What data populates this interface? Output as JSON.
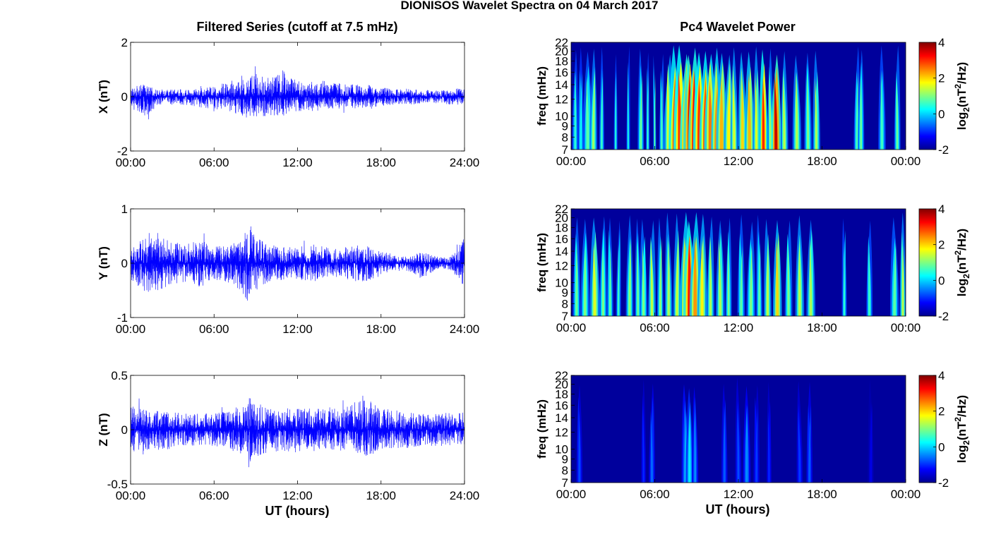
{
  "title": "DIONISOS Wavelet Spectra on 04 March 2017",
  "left_column_title": "Filtered Series (cutoff at 7.5 mHz)",
  "right_column_title": "Pc4 Wavelet Power",
  "x_axis_label": "UT (hours)",
  "colors": {
    "trace": "#0000ff",
    "spectrum_background": "#00009c",
    "axes": "#000000"
  },
  "chart_data": [
    {
      "type": "line",
      "component": "X",
      "ylabel": "X (nT)",
      "ylim": [
        -2,
        2
      ],
      "yticks": [
        "-2",
        "0",
        "2"
      ],
      "yticks_values": [
        -2,
        0,
        2
      ],
      "xlim": [
        0,
        24
      ],
      "xticks": [
        "00:00",
        "06:00",
        "12:00",
        "18:00",
        "24:00"
      ],
      "xticks_values": [
        0,
        6,
        12,
        18,
        24
      ],
      "envelope": {
        "x": [
          0,
          1,
          2,
          3,
          4,
          5,
          6,
          7,
          8,
          8.5,
          9,
          10,
          10.5,
          11,
          12,
          13,
          14,
          15,
          16,
          17,
          18,
          19,
          20,
          21,
          22,
          23,
          24
        ],
        "upper": [
          0.35,
          0.45,
          0.25,
          0.3,
          0.25,
          0.3,
          0.4,
          0.55,
          0.7,
          0.9,
          0.85,
          0.7,
          0.9,
          1.0,
          0.6,
          0.55,
          0.6,
          0.5,
          0.5,
          0.45,
          0.4,
          0.3,
          0.3,
          0.25,
          0.25,
          0.3,
          0.3
        ],
        "lower": [
          -0.4,
          -0.8,
          -0.3,
          -0.3,
          -0.3,
          -0.4,
          -0.45,
          -0.55,
          -0.7,
          -0.9,
          -0.8,
          -0.75,
          -0.7,
          -0.75,
          -0.55,
          -0.55,
          -0.5,
          -0.45,
          -0.45,
          -0.4,
          -0.35,
          -0.3,
          -0.3,
          -0.25,
          -0.25,
          -0.3,
          -0.3
        ]
      }
    },
    {
      "type": "line",
      "component": "Y",
      "ylabel": "Y (nT)",
      "ylim": [
        -1,
        1
      ],
      "yticks": [
        "-1",
        "0",
        "1"
      ],
      "yticks_values": [
        -1,
        0,
        1
      ],
      "xlim": [
        0,
        24
      ],
      "xticks": [
        "00:00",
        "06:00",
        "12:00",
        "18:00",
        "24:00"
      ],
      "xticks_values": [
        0,
        6,
        12,
        18,
        24
      ],
      "envelope": {
        "x": [
          0,
          1,
          2,
          3,
          4,
          5,
          6,
          7,
          8,
          8.5,
          9,
          10,
          11,
          12,
          13,
          14,
          15,
          16,
          17,
          18,
          19,
          20,
          21,
          22,
          23,
          24
        ],
        "upper": [
          0.3,
          0.45,
          0.5,
          0.4,
          0.35,
          0.45,
          0.3,
          0.35,
          0.5,
          0.8,
          0.5,
          0.35,
          0.3,
          0.3,
          0.35,
          0.3,
          0.25,
          0.35,
          0.35,
          0.25,
          0.15,
          0.15,
          0.2,
          0.12,
          0.12,
          0.5
        ],
        "lower": [
          -0.35,
          -0.55,
          -0.5,
          -0.4,
          -0.35,
          -0.45,
          -0.3,
          -0.35,
          -0.55,
          -0.75,
          -0.5,
          -0.35,
          -0.3,
          -0.3,
          -0.35,
          -0.3,
          -0.25,
          -0.35,
          -0.35,
          -0.25,
          -0.15,
          -0.15,
          -0.3,
          -0.12,
          -0.12,
          -0.45
        ]
      }
    },
    {
      "type": "line",
      "component": "Z",
      "ylabel": "Z (nT)",
      "ylim": [
        -0.5,
        0.5
      ],
      "yticks": [
        "-0.5",
        "0",
        "0.5"
      ],
      "yticks_values": [
        -0.5,
        0,
        0.5
      ],
      "xlim": [
        0,
        24
      ],
      "xticks": [
        "00:00",
        "06:00",
        "12:00",
        "18:00",
        "24:00"
      ],
      "xticks_values": [
        0,
        6,
        12,
        18,
        24
      ],
      "envelope": {
        "x": [
          0,
          2,
          4,
          6,
          7,
          8,
          8.5,
          9,
          10,
          12,
          14,
          16,
          17,
          18,
          20,
          22,
          24
        ],
        "upper": [
          0.22,
          0.2,
          0.15,
          0.15,
          0.17,
          0.22,
          0.3,
          0.25,
          0.2,
          0.2,
          0.2,
          0.25,
          0.28,
          0.2,
          0.17,
          0.15,
          0.17
        ],
        "lower": [
          -0.2,
          -0.2,
          -0.15,
          -0.15,
          -0.17,
          -0.25,
          -0.35,
          -0.25,
          -0.22,
          -0.2,
          -0.2,
          -0.2,
          -0.25,
          -0.2,
          -0.17,
          -0.15,
          -0.15
        ]
      }
    },
    {
      "type": "heatmap",
      "component": "X",
      "ylabel": "freq (mHz)",
      "ylim": [
        7,
        22
      ],
      "yticks": [
        "7",
        "8",
        "9",
        "10",
        "12",
        "14",
        "16",
        "18",
        "20",
        "22"
      ],
      "yticks_values": [
        7,
        8,
        9,
        10,
        12,
        14,
        16,
        18,
        20,
        22
      ],
      "xlim": [
        0,
        24
      ],
      "xticks": [
        "00:00",
        "06:00",
        "12:00",
        "18:00",
        "00:00"
      ],
      "xticks_values": [
        0,
        6,
        12,
        18,
        24
      ],
      "colorbar": {
        "label": "log2(nT2/Hz)",
        "range": [
          -2,
          4
        ],
        "ticks": [
          "-2",
          "0",
          "2",
          "4"
        ],
        "ticks_values": [
          -2,
          0,
          2,
          4
        ]
      },
      "streaks": [
        [
          0.3,
          0.5,
          0.5
        ],
        [
          0.7,
          0.5,
          0.3
        ],
        [
          1.2,
          0.8,
          0.8
        ],
        [
          1.6,
          0.6,
          1.2
        ],
        [
          2.2,
          0.4,
          0.6
        ],
        [
          3.2,
          0.3,
          0.5
        ],
        [
          4.1,
          0.3,
          0.4
        ],
        [
          5.0,
          0.5,
          0.9
        ],
        [
          5.5,
          0.3,
          0.6
        ],
        [
          6.0,
          0.2,
          0.9
        ],
        [
          6.5,
          0.4,
          0.7
        ],
        [
          7.0,
          0.8,
          1.6
        ],
        [
          7.4,
          0.9,
          2.8
        ],
        [
          7.8,
          1.0,
          3.0
        ],
        [
          8.2,
          0.9,
          3.3
        ],
        [
          8.5,
          1.0,
          3.5
        ],
        [
          8.8,
          0.9,
          3.3
        ],
        [
          9.2,
          1.0,
          3.0
        ],
        [
          9.6,
          0.9,
          2.8
        ],
        [
          10.0,
          1.0,
          2.6
        ],
        [
          10.4,
          0.8,
          2.4
        ],
        [
          10.8,
          0.9,
          2.2
        ],
        [
          11.3,
          0.8,
          1.8
        ],
        [
          11.7,
          0.6,
          1.6
        ],
        [
          12.3,
          0.7,
          2.0
        ],
        [
          12.8,
          0.8,
          2.2
        ],
        [
          13.3,
          0.6,
          1.6
        ],
        [
          13.8,
          0.7,
          3.1
        ],
        [
          14.3,
          0.5,
          1.2
        ],
        [
          14.7,
          0.8,
          3.6
        ],
        [
          15.3,
          0.6,
          1.4
        ],
        [
          16.2,
          0.7,
          1.3
        ],
        [
          17.0,
          0.6,
          1.0
        ],
        [
          17.6,
          0.6,
          1.3
        ],
        [
          20.5,
          0.5,
          0.7
        ],
        [
          20.8,
          0.5,
          0.9
        ],
        [
          22.3,
          0.6,
          0.6
        ],
        [
          23.4,
          0.5,
          0.9
        ]
      ]
    },
    {
      "type": "heatmap",
      "component": "Y",
      "ylabel": "freq (mHz)",
      "ylim": [
        7,
        22
      ],
      "yticks": [
        "7",
        "8",
        "9",
        "10",
        "12",
        "14",
        "16",
        "18",
        "20",
        "22"
      ],
      "yticks_values": [
        7,
        8,
        9,
        10,
        12,
        14,
        16,
        18,
        20,
        22
      ],
      "xlim": [
        0,
        24
      ],
      "xticks": [
        "00:00",
        "06:00",
        "12:00",
        "18:00",
        "00:00"
      ],
      "xticks_values": [
        0,
        6,
        12,
        18,
        24
      ],
      "colorbar": {
        "label": "log2(nT2/Hz)",
        "range": [
          -2,
          4
        ],
        "ticks": [
          "-2",
          "0",
          "2",
          "4"
        ],
        "ticks_values": [
          -2,
          0,
          2,
          4
        ]
      },
      "streaks": [
        [
          0.4,
          0.6,
          0.9
        ],
        [
          1.0,
          0.7,
          1.0
        ],
        [
          1.7,
          0.8,
          1.6
        ],
        [
          2.3,
          0.6,
          1.0
        ],
        [
          2.8,
          0.5,
          0.8
        ],
        [
          3.4,
          0.4,
          0.6
        ],
        [
          4.2,
          0.6,
          1.1
        ],
        [
          4.8,
          0.5,
          0.9
        ],
        [
          5.2,
          0.6,
          1.0
        ],
        [
          5.8,
          0.6,
          1.4
        ],
        [
          6.4,
          0.5,
          1.1
        ],
        [
          7.0,
          0.6,
          1.3
        ],
        [
          7.6,
          0.6,
          1.5
        ],
        [
          8.2,
          0.9,
          2.4
        ],
        [
          8.5,
          1.0,
          3.2
        ],
        [
          8.9,
          0.9,
          2.4
        ],
        [
          9.4,
          0.8,
          1.8
        ],
        [
          10.0,
          0.6,
          1.3
        ],
        [
          10.7,
          0.7,
          1.3
        ],
        [
          11.3,
          0.5,
          1.0
        ],
        [
          12.2,
          0.6,
          0.8
        ],
        [
          12.9,
          0.7,
          1.0
        ],
        [
          13.5,
          0.5,
          0.8
        ],
        [
          14.1,
          0.6,
          1.4
        ],
        [
          14.8,
          0.7,
          2.0
        ],
        [
          15.6,
          0.6,
          1.0
        ],
        [
          16.4,
          0.7,
          1.4
        ],
        [
          17.2,
          0.7,
          1.3
        ],
        [
          19.6,
          0.4,
          0.5
        ],
        [
          21.4,
          0.5,
          0.6
        ],
        [
          23.2,
          0.7,
          0.8
        ],
        [
          23.8,
          0.5,
          1.4
        ]
      ]
    },
    {
      "type": "heatmap",
      "component": "Z",
      "ylabel": "freq (mHz)",
      "ylim": [
        7,
        22
      ],
      "yticks": [
        "7",
        "8",
        "9",
        "10",
        "12",
        "14",
        "16",
        "18",
        "20",
        "22"
      ],
      "yticks_values": [
        7,
        8,
        9,
        10,
        12,
        14,
        16,
        18,
        20,
        22
      ],
      "xlim": [
        0,
        24
      ],
      "xticks": [
        "00:00",
        "06:00",
        "12:00",
        "18:00",
        "00:00"
      ],
      "xticks_values": [
        0,
        6,
        12,
        18,
        24
      ],
      "colorbar": {
        "label": "log2(nT2/Hz)",
        "range": [
          -2,
          4
        ],
        "ticks": [
          "-2",
          "0",
          "2",
          "4"
        ],
        "ticks_values": [
          -2,
          0,
          2,
          4
        ]
      },
      "streaks": [
        [
          0.6,
          0.5,
          -0.8
        ],
        [
          5.2,
          0.4,
          -1.0
        ],
        [
          5.8,
          0.5,
          -0.6
        ],
        [
          8.2,
          0.6,
          -0.2
        ],
        [
          8.5,
          0.6,
          0.2
        ],
        [
          8.9,
          0.5,
          -0.4
        ],
        [
          11.0,
          0.5,
          -0.7
        ],
        [
          12.0,
          0.5,
          -0.8
        ],
        [
          12.6,
          0.6,
          -0.4
        ],
        [
          13.3,
          0.5,
          -0.9
        ],
        [
          14.2,
          0.4,
          -1.0
        ],
        [
          16.4,
          0.5,
          -0.9
        ],
        [
          17.1,
          0.5,
          -0.7
        ],
        [
          21.5,
          0.5,
          -1.4
        ]
      ]
    }
  ]
}
